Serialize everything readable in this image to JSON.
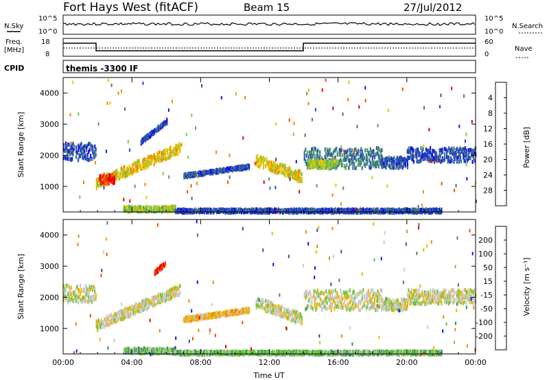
{
  "header": {
    "station": "Fort Hays West (fitACF)",
    "beam": "Beam 15",
    "date": "27/Jul/2012"
  },
  "summary_panels": {
    "nsky_label": "N.Sky",
    "nsearch_label": "N.Search",
    "nsky_ticks": [
      "10^5",
      "10^0"
    ],
    "nsearch_ticks": [
      "10^5",
      "10^0"
    ],
    "freq_label_1": "Freq.",
    "freq_label_2": "[MHz]",
    "freq_ticks": [
      "18",
      "8"
    ],
    "nave_label": "Nave",
    "nave_ticks": [
      "60",
      "0"
    ],
    "cpid_label": "CPID",
    "cpid_text": "themis -3300 IF"
  },
  "chart_data": [
    {
      "type": "heatmap",
      "name": "power",
      "ylabel": "Slant Range [km]",
      "xlabel": "Time UT",
      "ylim": [
        180,
        4500
      ],
      "xlim_hours": [
        0,
        24
      ],
      "yticks": [
        "1000",
        "2000",
        "3000",
        "4000"
      ],
      "xticks": [
        "00:00",
        "04:00",
        "08:00",
        "12:00",
        "16:00",
        "20:00",
        "00:00"
      ],
      "colorbar": {
        "label": "Power [dB]",
        "ticks": [
          "4",
          "8",
          "12",
          "16",
          "20",
          "24",
          "28"
        ],
        "colors": [
          "#1515e6",
          "#2a4fb0",
          "#3f7a85",
          "#52a05a",
          "#8cc63f",
          "#e6c400",
          "#f08a00",
          "#ff4a00",
          "#e60000"
        ]
      },
      "echo_regions": [
        {
          "t": [
            0.0,
            1.9
          ],
          "r": [
            1900,
            2450
          ],
          "level": 1
        },
        {
          "t": [
            1.9,
            6.8
          ],
          "r0": [
            1150,
            2300
          ],
          "thick": 320,
          "level": 5
        },
        {
          "t": [
            2.1,
            3.0
          ],
          "r": [
            1150,
            1450
          ],
          "level": 8
        },
        {
          "t": [
            4.5,
            6.0
          ],
          "r0": [
            2500,
            3150
          ],
          "thick": 120,
          "level": 1
        },
        {
          "t": [
            7.0,
            10.8
          ],
          "r0": [
            1400,
            1700
          ],
          "thick": 110,
          "level": 1
        },
        {
          "t": [
            3.5,
            6.5
          ],
          "r": [
            250,
            420
          ],
          "level": 4
        },
        {
          "t": [
            6.5,
            22.0
          ],
          "r": [
            220,
            330
          ],
          "level": 1
        },
        {
          "t": [
            11.2,
            13.9
          ],
          "r0": [
            1900,
            1350
          ],
          "thick": 350,
          "level": 5
        },
        {
          "t": [
            14.0,
            18.5
          ],
          "r": [
            1650,
            2300
          ],
          "level": 2
        },
        {
          "t": [
            14.2,
            16.0
          ],
          "r": [
            1650,
            1900
          ],
          "level": 4
        },
        {
          "t": [
            18.5,
            20.0
          ],
          "r": [
            1650,
            2000
          ],
          "level": 1
        },
        {
          "t": [
            20.0,
            24.0
          ],
          "r": [
            1850,
            2300
          ],
          "level": 1
        }
      ]
    },
    {
      "type": "heatmap",
      "name": "velocity",
      "ylabel": "Slant Range [km]",
      "xlabel": "Time UT",
      "ylim": [
        180,
        4500
      ],
      "xlim_hours": [
        0,
        24
      ],
      "yticks": [
        "1000",
        "2000",
        "3000",
        "4000"
      ],
      "xticks": [
        "00:00",
        "04:00",
        "08:00",
        "12:00",
        "16:00",
        "20:00",
        "00:00"
      ],
      "colorbar": {
        "label": "Velocity [m s⁻¹]",
        "ticks": [
          "200",
          "100",
          "50",
          "15",
          "-15",
          "-50",
          "-100",
          "-200"
        ],
        "colors": [
          "#1515e6",
          "#2a4fb0",
          "#3f8a5a",
          "#6cc63f",
          "#c8c8c8",
          "#f0b400",
          "#f08a00",
          "#ff4a00",
          "#e60000"
        ]
      },
      "echo_regions": [
        {
          "t": [
            0.0,
            1.9
          ],
          "r": [
            1900,
            2450
          ],
          "level": 4
        },
        {
          "t": [
            1.9,
            6.8
          ],
          "r0": [
            1150,
            2300
          ],
          "thick": 320,
          "level": 4
        },
        {
          "t": [
            5.3,
            5.9
          ],
          "r0": [
            2850,
            3150
          ],
          "thick": 120,
          "level": 8
        },
        {
          "t": [
            7.0,
            10.8
          ],
          "r0": [
            1350,
            1650
          ],
          "thick": 130,
          "level": 5
        },
        {
          "t": [
            3.5,
            6.5
          ],
          "r": [
            250,
            420
          ],
          "level": 3
        },
        {
          "t": [
            6.5,
            22.0
          ],
          "r": [
            220,
            330
          ],
          "level": 3
        },
        {
          "t": [
            11.2,
            13.9
          ],
          "r0": [
            1900,
            1350
          ],
          "thick": 350,
          "level": 4
        },
        {
          "t": [
            14.0,
            18.5
          ],
          "r": [
            1650,
            2300
          ],
          "level": 4
        },
        {
          "t": [
            18.5,
            20.0
          ],
          "r": [
            1650,
            2000
          ],
          "level": 4
        },
        {
          "t": [
            20.0,
            24.0
          ],
          "r": [
            1850,
            2300
          ],
          "level": 4
        }
      ]
    }
  ]
}
